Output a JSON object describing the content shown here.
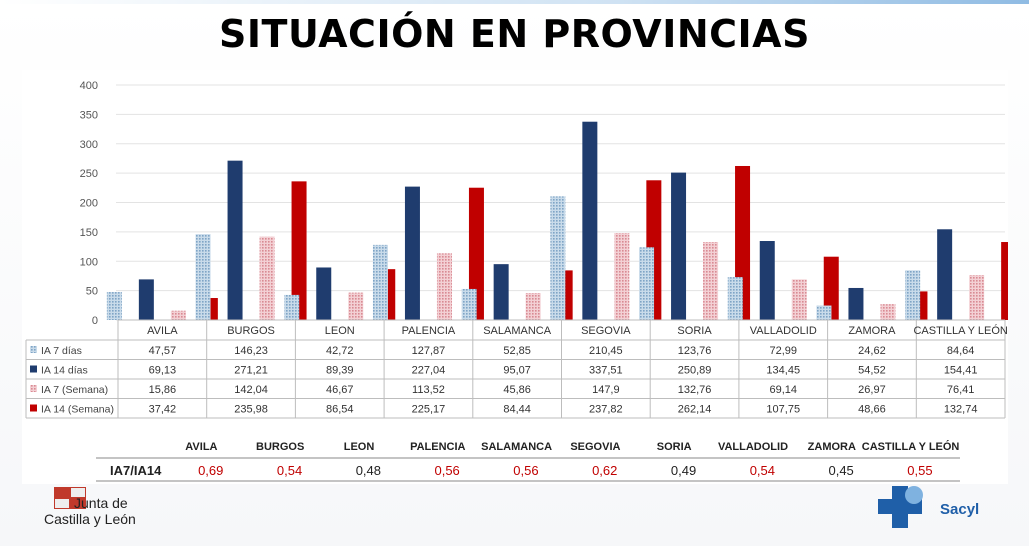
{
  "title": "SITUACIÓN EN PROVINCIAS",
  "colors": {
    "ia7_dias": "#9dbbd6",
    "ia14_dias": "#1f3c6e",
    "ia7_semana": "#e4a7ae",
    "ia14_semana": "#c00000",
    "ratio_red": "#c00000",
    "ratio_black": "#222222"
  },
  "chart_data": {
    "type": "bar",
    "ylim": [
      0,
      400
    ],
    "yticks": [
      "0",
      "50",
      "100",
      "150",
      "200",
      "250",
      "300",
      "350",
      "400"
    ],
    "grid": true,
    "categories": [
      "AVILA",
      "BURGOS",
      "LEON",
      "PALENCIA",
      "SALAMANCA",
      "SEGOVIA",
      "SORIA",
      "VALLADOLID",
      "ZAMORA",
      "CASTILLA Y LEÓN"
    ],
    "series": [
      {
        "name": "IA 7 días",
        "pattern": "dots",
        "color_key": "ia7_dias",
        "values": [
          47.57,
          146.23,
          42.72,
          127.87,
          52.85,
          210.45,
          123.76,
          72.99,
          24.62,
          84.64
        ],
        "labels": [
          "47,57",
          "146,23",
          "42,72",
          "127,87",
          "52,85",
          "210,45",
          "123,76",
          "72,99",
          "24,62",
          "84,64"
        ]
      },
      {
        "name": "IA 14 días",
        "pattern": "solid",
        "color_key": "ia14_dias",
        "values": [
          69.13,
          271.21,
          89.39,
          227.04,
          95.07,
          337.51,
          250.89,
          134.45,
          54.52,
          154.41
        ],
        "labels": [
          "69,13",
          "271,21",
          "89,39",
          "227,04",
          "95,07",
          "337,51",
          "250,89",
          "134,45",
          "54,52",
          "154,41"
        ]
      },
      {
        "name": "IA 7 (Semana)",
        "pattern": "dots",
        "color_key": "ia7_semana",
        "values": [
          15.86,
          142.04,
          46.67,
          113.52,
          45.86,
          147.9,
          132.76,
          69.14,
          26.97,
          76.41
        ],
        "labels": [
          "15,86",
          "142,04",
          "46,67",
          "113,52",
          "45,86",
          "147,9",
          "132,76",
          "69,14",
          "26,97",
          "76,41"
        ]
      },
      {
        "name": "IA 14 (Semana)",
        "pattern": "solid",
        "color_key": "ia14_semana",
        "values": [
          37.42,
          235.98,
          86.54,
          225.17,
          84.44,
          237.82,
          262.14,
          107.75,
          48.66,
          132.74
        ],
        "labels": [
          "37,42",
          "235,98",
          "86,54",
          "225,17",
          "84,44",
          "237,82",
          "262,14",
          "107,75",
          "48,66",
          "132,74"
        ]
      }
    ]
  },
  "ratio_table": {
    "row_label": "IA7/IA14",
    "headers": [
      "AVILA",
      "BURGOS",
      "LEON",
      "PALENCIA",
      "SALAMANCA",
      "SEGOVIA",
      "SORIA",
      "VALLADOLID",
      "ZAMORA",
      "CASTILLA Y LEÓN"
    ],
    "values": [
      "0,69",
      "0,54",
      "0,48",
      "0,56",
      "0,56",
      "0,62",
      "0,49",
      "0,54",
      "0,45",
      "0,55"
    ],
    "value_colors": [
      "red",
      "red",
      "black",
      "red",
      "red",
      "red",
      "black",
      "red",
      "black",
      "red"
    ]
  },
  "footer": {
    "left_logo_line1": "Junta de",
    "left_logo_line2": "Castilla y León",
    "right_logo": "Sacyl"
  }
}
